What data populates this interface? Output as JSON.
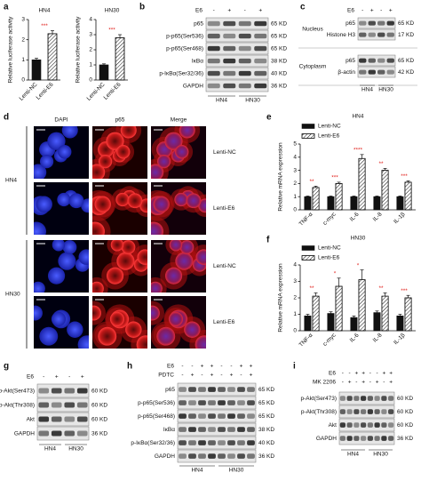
{
  "panel_letters": [
    "a",
    "b",
    "c",
    "d",
    "e",
    "f",
    "g",
    "h",
    "i"
  ],
  "chart_data": [
    {
      "type": "bar",
      "title": "HN4",
      "y_label": "Relative luciferase activity",
      "categories": [
        "Lenti-NC",
        "Lenti-E6"
      ],
      "values": [
        1.0,
        2.3
      ],
      "errors": [
        0.08,
        0.15
      ],
      "colors": [
        "#111111",
        "#ffffff"
      ],
      "hatch": [
        false,
        true
      ],
      "ylim": [
        0,
        3
      ],
      "yticks": [
        0,
        1,
        2,
        3
      ],
      "annotation": "***"
    },
    {
      "type": "bar",
      "title": "HN30",
      "y_label": "Relative luciferase activity",
      "categories": [
        "Lenti-NC",
        "Lenti-E6"
      ],
      "values": [
        1.0,
        2.8
      ],
      "errors": [
        0.07,
        0.2
      ],
      "colors": [
        "#111111",
        "#ffffff"
      ],
      "hatch": [
        false,
        true
      ],
      "ylim": [
        0,
        4
      ],
      "yticks": [
        0,
        1,
        2,
        3,
        4
      ],
      "annotation": "***"
    },
    {
      "type": "grouped_bar",
      "title": "HN4",
      "y_label": "Relative mRNA expression",
      "categories": [
        "TNF-α",
        "c-myc",
        "IL-6",
        "IL-8",
        "IL-1β"
      ],
      "series": [
        {
          "name": "Lenti-NC",
          "color": "#111111",
          "hatch": false,
          "values": [
            1.0,
            1.0,
            1.0,
            1.0,
            1.0
          ],
          "errors": [
            0.05,
            0.05,
            0.05,
            0.05,
            0.05
          ]
        },
        {
          "name": "Lenti-E6",
          "color": "#ffffff",
          "hatch": true,
          "values": [
            1.7,
            2.0,
            3.9,
            3.0,
            2.1
          ],
          "errors": [
            0.1,
            0.1,
            0.3,
            0.15,
            0.1
          ]
        }
      ],
      "ylim": [
        0,
        5
      ],
      "yticks": [
        0,
        1,
        2,
        3,
        4,
        5
      ],
      "annotations": [
        "**",
        "***",
        "****",
        "**",
        "***"
      ]
    },
    {
      "type": "grouped_bar",
      "title": "HN30",
      "y_label": "Relative mRNA expression",
      "categories": [
        "TNF-α",
        "c-myc",
        "IL-6",
        "IL-8",
        "IL-1β"
      ],
      "series": [
        {
          "name": "Lenti-NC",
          "color": "#111111",
          "hatch": false,
          "values": [
            0.9,
            1.05,
            0.8,
            1.1,
            0.9
          ],
          "errors": [
            0.1,
            0.1,
            0.1,
            0.1,
            0.1
          ]
        },
        {
          "name": "Lenti-E6",
          "color": "#ffffff",
          "hatch": true,
          "values": [
            2.1,
            2.7,
            3.1,
            2.1,
            2.0
          ],
          "errors": [
            0.2,
            0.5,
            0.6,
            0.2,
            0.15
          ]
        }
      ],
      "ylim": [
        0,
        4
      ],
      "yticks": [
        0,
        1,
        2,
        3,
        4
      ],
      "annotations": [
        "**",
        "*",
        "*",
        "**",
        "***"
      ]
    }
  ],
  "blots": {
    "b": {
      "treatments": [
        {
          "label": "E6",
          "signs": [
            "-",
            "+",
            "-",
            "+"
          ]
        }
      ],
      "rows": [
        {
          "label": "p65",
          "kd": "65 KD"
        },
        {
          "label": "p-p65(Ser536)",
          "kd": "65 KD"
        },
        {
          "label": "p-p65(Ser468)",
          "kd": "65 KD"
        },
        {
          "label": "IκBα",
          "kd": "38 KD"
        },
        {
          "label": "p-IκBα(Ser32/36)",
          "kd": "40 KD"
        },
        {
          "label": "GAPDH",
          "kd": "36 KD"
        }
      ],
      "cells": [
        "HN4",
        "HN30"
      ]
    },
    "c": {
      "treatments": [
        {
          "label": "E6",
          "signs": [
            "-",
            "+",
            "-",
            "+"
          ]
        }
      ],
      "groups": [
        {
          "label": "Nucleus",
          "rows": [
            {
              "label": "p65",
              "kd": "65 KD"
            },
            {
              "label": "Histone H3",
              "kd": "17 KD"
            }
          ]
        },
        {
          "label": "Cytoplasm",
          "rows": [
            {
              "label": "p65",
              "kd": "65 KD"
            },
            {
              "label": "β-actin",
              "kd": "42 KD"
            }
          ]
        }
      ],
      "cells": [
        "HN4",
        "HN30"
      ]
    },
    "g": {
      "treatments": [
        {
          "label": "E6",
          "signs": [
            "-",
            "+",
            "-",
            "+"
          ]
        }
      ],
      "rows": [
        {
          "label": "p-Akt(Ser473)",
          "kd": "60 KD"
        },
        {
          "label": "p-Akt(Thr308)",
          "kd": "60 KD"
        },
        {
          "label": "Akt",
          "kd": "60 KD"
        },
        {
          "label": "GAPDH",
          "kd": "36 KD"
        }
      ],
      "cells": [
        "HN4",
        "HN30"
      ]
    },
    "h": {
      "treatments": [
        {
          "label": "E6",
          "signs": [
            "-",
            "-",
            "+",
            "+",
            "-",
            "-",
            "+",
            "+"
          ]
        },
        {
          "label": "PDTC",
          "signs": [
            "-",
            "+",
            "-",
            "+",
            "-",
            "+",
            "-",
            "+"
          ]
        }
      ],
      "rows": [
        {
          "label": "p65",
          "kd": "65 KD"
        },
        {
          "label": "p-p65(Ser536)",
          "kd": "65 KD"
        },
        {
          "label": "p-p65(Ser468)",
          "kd": "65 KD"
        },
        {
          "label": "IκBα",
          "kd": "38 KD"
        },
        {
          "label": "p-IκBα(Ser32/36)",
          "kd": "40 KD"
        },
        {
          "label": "GAPDH",
          "kd": "36 KD"
        }
      ],
      "cells": [
        "HN4",
        "HN30"
      ]
    },
    "i": {
      "treatments": [
        {
          "label": "E6",
          "signs": [
            "-",
            "-",
            "+",
            "+",
            "-",
            "-",
            "+",
            "+"
          ]
        },
        {
          "label": "MK 2206",
          "signs": [
            "-",
            "+",
            "-",
            "+",
            "-",
            "+",
            "-",
            "+"
          ]
        }
      ],
      "rows": [
        {
          "label": "p-Akt(Ser473)",
          "kd": "60 KD"
        },
        {
          "label": "p-Akt(Thr308)",
          "kd": "60 KD"
        },
        {
          "label": "Akt",
          "kd": "60 KD"
        },
        {
          "label": "GAPDH",
          "kd": "36 KD"
        }
      ],
      "cells": [
        "HN4",
        "HN30"
      ]
    }
  },
  "microscopy": {
    "columns": [
      "DAPI",
      "p65",
      "Merge"
    ],
    "cells": [
      {
        "label": "HN4",
        "rows": [
          "Lenti-NC",
          "Lenti-E6"
        ]
      },
      {
        "label": "HN30",
        "rows": [
          "Lenti-NC",
          "Lenti-E6"
        ]
      }
    ]
  }
}
